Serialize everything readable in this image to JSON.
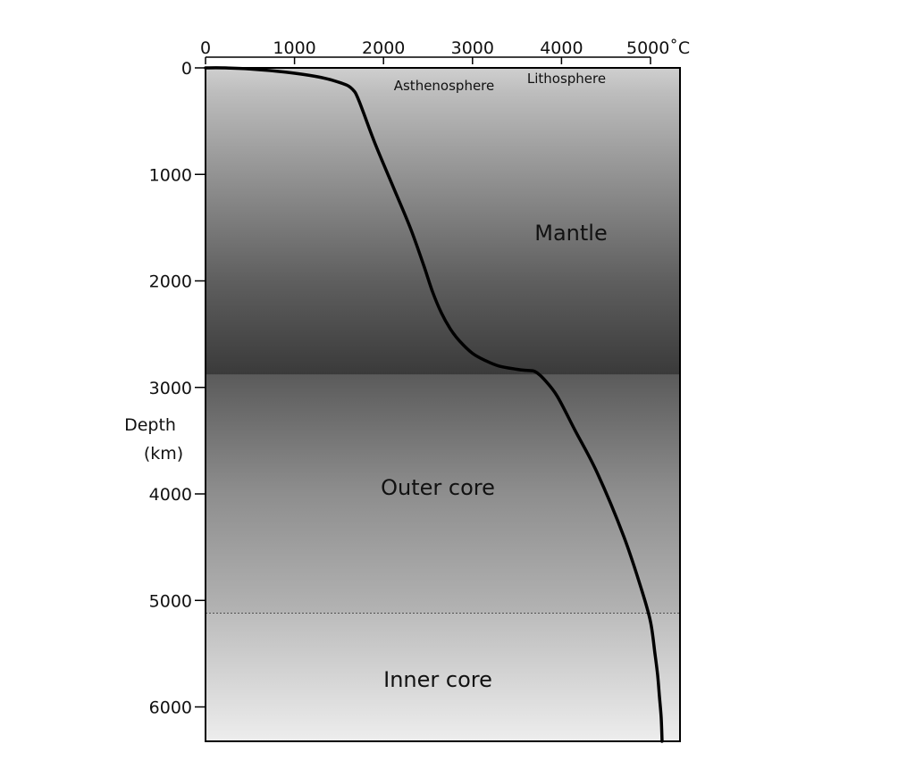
{
  "chart_data": {
    "type": "line",
    "x_ticks": [
      "0",
      "1000",
      "2000",
      "3000",
      "4000",
      "5000˚C"
    ],
    "x_tick_values": [
      0,
      1000,
      2000,
      3000,
      4000,
      5000
    ],
    "y_ticks": [
      "0",
      "1000",
      "2000",
      "3000",
      "4000",
      "5000",
      "6000"
    ],
    "y_tick_values": [
      0,
      1000,
      2000,
      3000,
      4000,
      5000,
      6000
    ],
    "ylabel": "Depth",
    "ylabel_units": "(km)",
    "xlim": [
      0,
      5300
    ],
    "ylim": [
      0,
      6370
    ],
    "y_inverted": true,
    "x_axis_position": "top",
    "series": [
      {
        "x": [
          0,
          200,
          500,
          900,
          1300,
          1550,
          1650,
          1720,
          1900,
          2100,
          2300,
          2450,
          2550,
          2650,
          2750,
          2850,
          3000,
          3150,
          3300,
          3500,
          3600,
          3680,
          3720,
          3800,
          3950,
          4150,
          4400,
          4700,
          4900,
          5000,
          5050,
          5080,
          5100,
          5120,
          5130
        ],
        "y": [
          0,
          0,
          10,
          40,
          90,
          150,
          200,
          300,
          700,
          1100,
          1500,
          1850,
          2100,
          2300,
          2450,
          2560,
          2680,
          2750,
          2800,
          2830,
          2840,
          2845,
          2860,
          2920,
          3080,
          3400,
          3800,
          4400,
          4900,
          5200,
          5500,
          5700,
          5900,
          6100,
          6370
        ]
      }
    ],
    "regions": [
      {
        "name": "Asthenosphere",
        "depth_center": 150
      },
      {
        "name": "Lithosphere",
        "depth_center": 100
      },
      {
        "name": "Mantle",
        "depth_center": 1550
      },
      {
        "name": "Outer core",
        "depth_center": 3950
      },
      {
        "name": "Inner core",
        "depth_center": 5740
      }
    ],
    "boundaries": [
      {
        "name": "core-mantle-boundary",
        "depth": 2880
      },
      {
        "name": "inner-core-boundary",
        "depth": 5120
      }
    ],
    "grid": false,
    "colors": {
      "curve": "#000000",
      "frame": "#000000",
      "mantle_top": "#d4d4d4",
      "mantle_bottom": "#3a3a3a",
      "outer_core_top": "#5e5e5e",
      "outer_core_bottom": "#b0b0b0",
      "inner_core_top": "#bdbdbd",
      "inner_core_bottom": "#ececec"
    }
  }
}
